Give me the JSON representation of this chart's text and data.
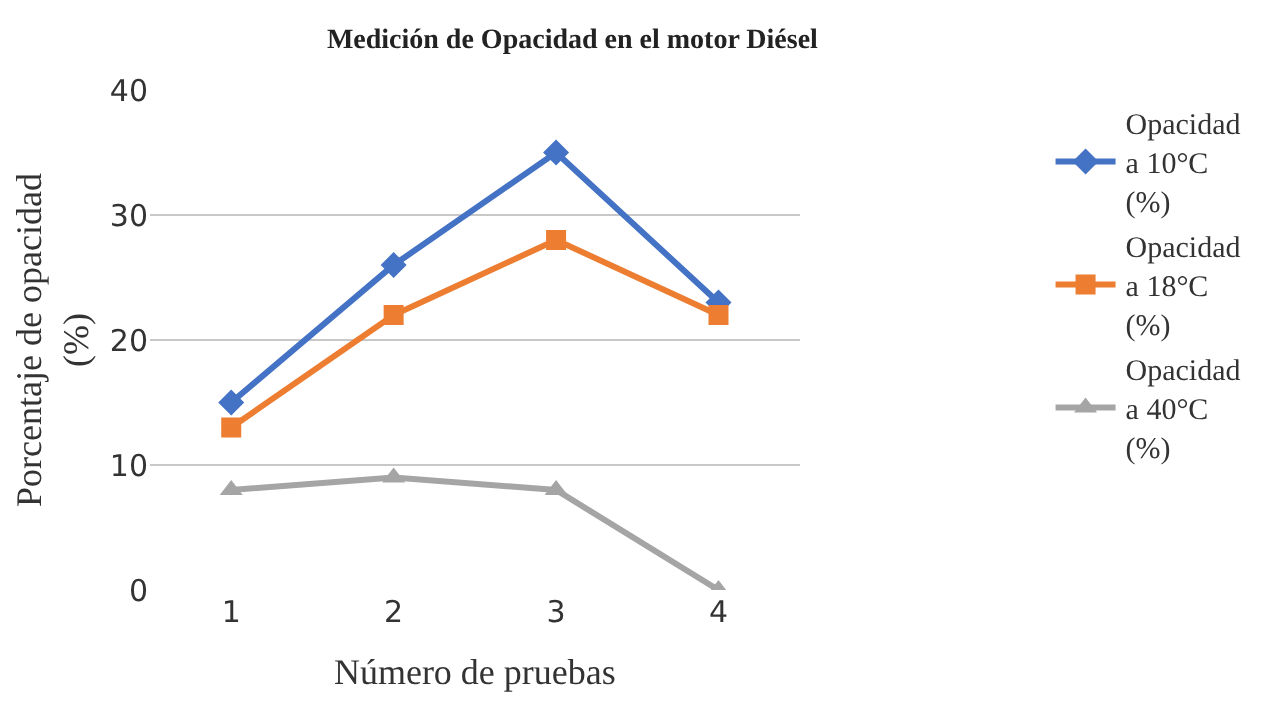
{
  "chart_data": {
    "type": "line",
    "title": "Medición de Opacidad en el motor Diésel",
    "xlabel": "Número de pruebas",
    "ylabel": "Porcentaje de opacidad (%)",
    "categories": [
      "1",
      "2",
      "3",
      "4"
    ],
    "series": [
      {
        "name": "Opacidad a 10°C (%)",
        "color": "#4472c4",
        "marker": "diamond",
        "values": [
          15,
          26,
          35,
          23
        ]
      },
      {
        "name": "Opacidad a 18°C (%)",
        "color": "#ed7d31",
        "marker": "square",
        "values": [
          13,
          22,
          28,
          22
        ]
      },
      {
        "name": "Opacidad a 40°C (%)",
        "color": "#a5a5a5",
        "marker": "triangle",
        "values": [
          8,
          9,
          8,
          0
        ]
      }
    ],
    "ylim": [
      0,
      40
    ],
    "yticks": [
      0,
      10,
      20,
      30,
      40
    ],
    "grid": "y",
    "legend": "right",
    "line_style": "solid"
  }
}
